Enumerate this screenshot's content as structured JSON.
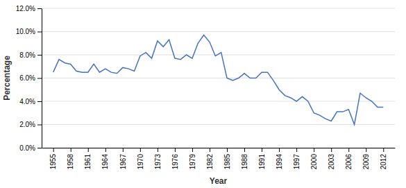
{
  "chart_data": {
    "type": "line",
    "xlabel": "Year",
    "ylabel": "Percentage",
    "x": [
      1955,
      1956,
      1957,
      1958,
      1959,
      1960,
      1961,
      1962,
      1963,
      1964,
      1965,
      1966,
      1967,
      1968,
      1969,
      1970,
      1971,
      1972,
      1973,
      1974,
      1975,
      1976,
      1977,
      1978,
      1979,
      1980,
      1981,
      1982,
      1983,
      1984,
      1985,
      1986,
      1987,
      1988,
      1989,
      1990,
      1991,
      1992,
      1993,
      1994,
      1995,
      1996,
      1997,
      1998,
      1999,
      2000,
      2001,
      2002,
      2003,
      2004,
      2005,
      2006,
      2007,
      2008,
      2009,
      2010,
      2011,
      2012
    ],
    "values": [
      0.065,
      0.076,
      0.073,
      0.072,
      0.066,
      0.065,
      0.065,
      0.072,
      0.065,
      0.068,
      0.065,
      0.064,
      0.069,
      0.068,
      0.066,
      0.079,
      0.082,
      0.077,
      0.092,
      0.087,
      0.093,
      0.077,
      0.076,
      0.08,
      0.077,
      0.09,
      0.097,
      0.091,
      0.079,
      0.082,
      0.06,
      0.058,
      0.06,
      0.064,
      0.06,
      0.06,
      0.065,
      0.065,
      0.058,
      0.05,
      0.045,
      0.043,
      0.04,
      0.044,
      0.04,
      0.03,
      0.028,
      0.025,
      0.023,
      0.031,
      0.031,
      0.033,
      0.02,
      0.047,
      0.043,
      0.04,
      0.035,
      0.035
    ],
    "color": "#4472C4",
    "xlim": [
      1953,
      2014
    ],
    "ylim": [
      0.0,
      0.12
    ],
    "xticks": [
      1955,
      1958,
      1961,
      1964,
      1967,
      1970,
      1973,
      1976,
      1979,
      1982,
      1985,
      1988,
      1991,
      1994,
      1997,
      2000,
      2003,
      2006,
      2009,
      2012
    ],
    "yticks": [
      {
        "value": 0.0,
        "label": "0.0%"
      },
      {
        "value": 0.02,
        "label": "2.0%"
      },
      {
        "value": 0.04,
        "label": "4.0%"
      },
      {
        "value": 0.06,
        "label": "6.0%"
      },
      {
        "value": 0.08,
        "label": "8.0%"
      },
      {
        "value": 0.1,
        "label": "10.0%"
      },
      {
        "value": 0.12,
        "label": "12.0%"
      }
    ],
    "grid": true
  }
}
